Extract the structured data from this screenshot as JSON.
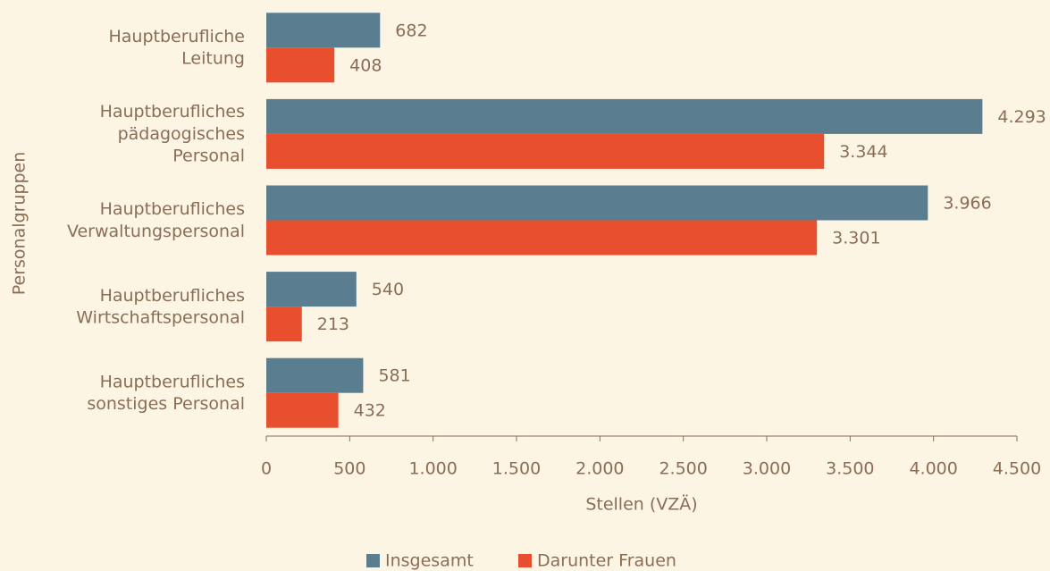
{
  "chart_data": {
    "type": "bar",
    "orientation": "horizontal",
    "ylabel": "Personalgruppen",
    "xlabel": "Stellen (VZÄ)",
    "categories": [
      "Hauptberufliche\nLeitung",
      "Hauptberufliches\npädagogisches\nPersonal",
      "Hauptberufliches\nVerwaltungspersonal",
      "Hauptberufliches\nWirtschaftspersonal",
      "Hauptberufliches\nsonstiges Personal"
    ],
    "series": [
      {
        "name": "Insgesamt",
        "color": "#5b7d90",
        "values": [
          682,
          4293,
          3966,
          540,
          581
        ],
        "value_labels": [
          "682",
          "4.293",
          "3.966",
          "540",
          "581"
        ]
      },
      {
        "name": "Darunter Frauen",
        "color": "#e84f2f",
        "values": [
          408,
          3344,
          3301,
          213,
          432
        ],
        "value_labels": [
          "408",
          "3.344",
          "3.301",
          "213",
          "432"
        ]
      }
    ],
    "xlim": [
      0,
      4500
    ],
    "xticks": [
      0,
      500,
      {
        "value": 1000,
        "label": "1.000"
      },
      {
        "value": 1500,
        "label": "1.500"
      },
      {
        "value": 2000,
        "label": "2.000"
      },
      {
        "value": 2500,
        "label": "2.500"
      },
      {
        "value": 3000,
        "label": "3.000"
      },
      {
        "value": 3500,
        "label": "3.500"
      },
      {
        "value": 4000,
        "label": "4.000"
      },
      {
        "value": 4500,
        "label": "4.500"
      }
    ],
    "grid": false,
    "legend": "bottom"
  }
}
